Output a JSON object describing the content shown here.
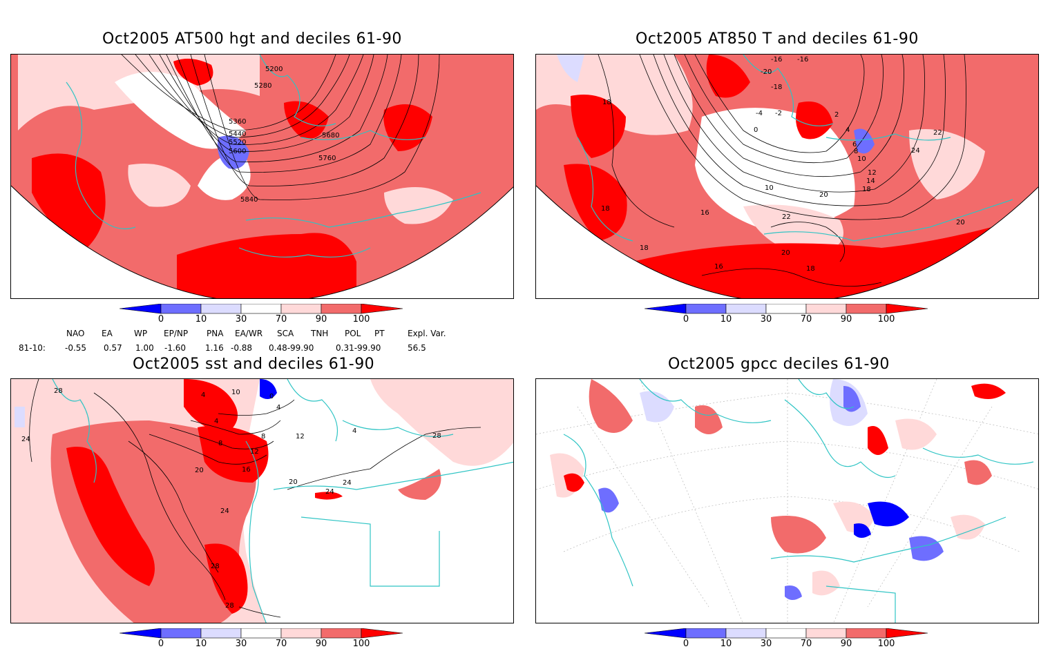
{
  "panels": {
    "p1": {
      "title": "Oct2005 AT500 hgt and deciles 61-90",
      "contour_labels": [
        "5200",
        "5280",
        "5360",
        "5440",
        "5520",
        "5600",
        "5680",
        "5760",
        "5840"
      ]
    },
    "p2": {
      "title": "Oct2005 AT850 T and deciles 61-90",
      "contour_labels": [
        "-16",
        "-16",
        "-20",
        "-18",
        "-4",
        "-2",
        "0",
        "2",
        "4",
        "6",
        "8",
        "10",
        "12",
        "14",
        "16",
        "18",
        "20",
        "22",
        "24",
        "18",
        "18",
        "18",
        "16",
        "22",
        "20",
        "18",
        "20"
      ]
    },
    "p3": {
      "title": "Oct2005 sst and deciles 61-90",
      "contour_labels": [
        "28",
        "24",
        "4",
        "0",
        "4",
        "4",
        "8",
        "8",
        "12",
        "12",
        "16",
        "20",
        "20",
        "24",
        "24",
        "24",
        "28",
        "28",
        "28",
        "4",
        "10"
      ]
    },
    "p4": {
      "title": "Oct2005 gpcc deciles 61-90"
    }
  },
  "colorbar": {
    "tick_labels": [
      "0",
      "10",
      "30",
      "70",
      "90",
      "100"
    ],
    "colors": [
      "#0000ff",
      "#6e6eff",
      "#dcdcff",
      "#ffffff",
      "#ffd9d9",
      "#f26b6b",
      "#ff0000"
    ]
  },
  "indices": {
    "headers": [
      "NAO",
      "EA",
      "WP",
      "EP/NP",
      "PNA",
      "EA/WR",
      "SCA",
      "TNH",
      "POL",
      "PT",
      "Expl. Var."
    ],
    "row_label": "81-10:",
    "values": [
      "-0.55",
      "0.57",
      "1.00",
      "-1.60",
      "1.16",
      "-0.88",
      "0.48-99.90",
      "0.31-99.90",
      "56.5"
    ]
  },
  "colors": {
    "coast": "#2ec4c4",
    "red_dark": "#ff0000",
    "red_mid": "#f26b6b",
    "red_light": "#ffd9d9",
    "blue_light": "#dcdcff",
    "blue_mid": "#6e6eff",
    "blue_dark": "#0000ff"
  }
}
